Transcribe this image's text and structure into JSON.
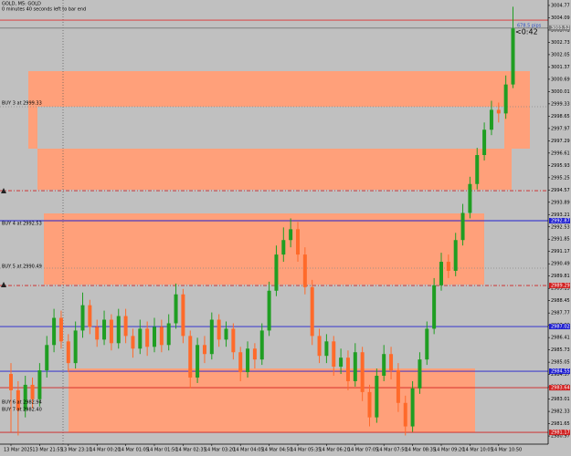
{
  "chart_data": {
    "type": "candlestick",
    "title": "GOLD, M5: GOLD",
    "subtitle": "0 minutes 40 seconds left to bar end",
    "countdown": "<0:42",
    "distance": "678.5 pips",
    "annotations": [
      "BUY 3 at 2999.33",
      "BUY 4 at 2992.53",
      "BUY 5 at 2990.49",
      "BUY 6 at 2982.94",
      "BUY 7 at 2982.40"
    ],
    "categories": [
      "13 Mar 2025",
      null,
      null,
      null,
      "13 Mar 21:55",
      null,
      null,
      null,
      "13 Mar 23:10",
      null,
      null,
      null,
      "14 Mar 00:20",
      null,
      null,
      null,
      "14 Mar 01:05",
      null,
      null,
      null,
      "14 Mar 01:50",
      null,
      null,
      null,
      "14 Mar 02:35",
      null,
      null,
      null,
      "14 Mar 03:20",
      null,
      null,
      null,
      "14 Mar 04:05",
      null,
      null,
      null,
      "14 Mar 04:50",
      null,
      null,
      null,
      "14 Mar 05:35",
      null,
      null,
      null,
      "14 Mar 06:20",
      null,
      null,
      null,
      "14 Mar 07:05",
      null,
      null,
      null,
      "14 Mar 07:50",
      null,
      null,
      null,
      "14 Mar 08:35",
      null,
      null,
      null,
      "14 Mar 09:20",
      null,
      null,
      null,
      "14 Mar 10:05",
      null,
      null,
      null,
      "14 Mar 10:50",
      null,
      null
    ],
    "open": [
      2984.4,
      2983.5,
      2982.4,
      2983.8,
      2983.0,
      2984.6,
      2986.0,
      2987.5,
      2986.2,
      2985.0,
      2986.8,
      2988.2,
      2987.0,
      2986.3,
      2987.4,
      2986.1,
      2987.6,
      2986.5,
      2985.8,
      2986.9,
      2985.9,
      2987.0,
      2986.0,
      2987.2,
      2988.8,
      2986.5,
      2984.2,
      2986.0,
      2985.5,
      2987.4,
      2986.3,
      2986.9,
      2985.6,
      2984.5,
      2985.8,
      2985.2,
      2986.8,
      2989.0,
      2991.0,
      2991.8,
      2992.4,
      2991.0,
      2989.2,
      2986.5,
      2985.4,
      2986.2,
      2984.8,
      2985.3,
      2984.0,
      2985.6,
      2983.4,
      2982.0,
      2984.3,
      2985.5,
      2984.6,
      2982.8,
      2981.5,
      2983.6,
      2985.2,
      2986.9,
      2989.3,
      2990.6,
      2990.1,
      2991.8,
      2993.3,
      2994.9,
      2996.5,
      2997.9,
      2999.0,
      2998.8,
      3000.4
    ],
    "high": [
      2985.0,
      2984.0,
      2984.3,
      2984.2,
      2985.0,
      2986.5,
      2988.0,
      2987.9,
      2986.6,
      2987.3,
      2988.9,
      2988.5,
      2987.4,
      2987.9,
      2987.7,
      2988.0,
      2988.0,
      2986.9,
      2987.4,
      2987.3,
      2987.5,
      2987.4,
      2987.7,
      2989.4,
      2989.1,
      2986.8,
      2986.4,
      2986.5,
      2987.8,
      2987.7,
      2987.3,
      2987.2,
      2985.9,
      2986.2,
      2986.1,
      2987.2,
      2989.5,
      2991.5,
      2992.5,
      2993.0,
      2992.8,
      2991.4,
      2989.6,
      2986.9,
      2986.6,
      2986.5,
      2985.8,
      2985.7,
      2986.1,
      2985.9,
      2983.8,
      2984.7,
      2986.0,
      2985.9,
      2985.0,
      2983.2,
      2984.0,
      2985.6,
      2987.3,
      2989.7,
      2991.1,
      2991.0,
      2992.2,
      2993.8,
      2995.3,
      2996.9,
      2998.3,
      2999.5,
      2999.4,
      3000.9,
      3004.7
    ],
    "low": [
      2981.2,
      2981.0,
      2982.0,
      2982.5,
      2982.6,
      2984.2,
      2985.6,
      2985.8,
      2984.5,
      2984.7,
      2986.4,
      2986.6,
      2985.9,
      2986.0,
      2985.7,
      2985.8,
      2986.1,
      2985.3,
      2985.5,
      2985.4,
      2985.6,
      2985.6,
      2985.7,
      2986.9,
      2986.1,
      2983.6,
      2983.9,
      2985.0,
      2985.2,
      2985.9,
      2985.9,
      2985.2,
      2984.0,
      2984.2,
      2984.7,
      2984.9,
      2986.5,
      2988.7,
      2990.6,
      2991.4,
      2990.6,
      2988.8,
      2986.0,
      2985.0,
      2985.0,
      2984.3,
      2984.4,
      2983.5,
      2983.7,
      2982.9,
      2981.5,
      2981.7,
      2984.0,
      2984.1,
      2982.3,
      2981.0,
      2981.2,
      2983.3,
      2984.9,
      2986.6,
      2989.0,
      2989.7,
      2989.8,
      2991.5,
      2993.0,
      2994.6,
      2996.2,
      2997.6,
      2998.3,
      2998.5,
      3000.2
    ],
    "close": [
      2983.5,
      2982.4,
      2983.8,
      2983.0,
      2984.6,
      2986.0,
      2987.5,
      2986.2,
      2985.0,
      2986.8,
      2988.2,
      2987.0,
      2986.3,
      2987.4,
      2986.1,
      2987.6,
      2986.5,
      2985.8,
      2986.9,
      2985.9,
      2987.0,
      2986.0,
      2987.2,
      2988.8,
      2986.5,
      2984.2,
      2986.0,
      2985.5,
      2987.4,
      2986.3,
      2986.9,
      2985.6,
      2984.5,
      2985.8,
      2985.2,
      2986.8,
      2989.0,
      2991.0,
      2991.8,
      2992.4,
      2991.0,
      2989.2,
      2986.5,
      2985.4,
      2986.2,
      2984.8,
      2985.3,
      2984.0,
      2985.6,
      2983.4,
      2982.0,
      2984.3,
      2985.5,
      2984.6,
      2982.8,
      2981.5,
      2983.6,
      2985.2,
      2986.9,
      2989.3,
      2990.6,
      2990.1,
      2991.8,
      2993.3,
      2994.9,
      2996.5,
      2997.9,
      2999.0,
      2998.8,
      3000.4,
      3003.5
    ],
    "up_color": "#1f9e22",
    "down_color": "#ff6a2a",
    "ylim": [
      2980.52,
      3005.07
    ],
    "yticks": [
      2980.97,
      2981.65,
      2982.33,
      2983.01,
      2983.69,
      2984.37,
      2985.05,
      2985.73,
      2986.41,
      2987.09,
      2987.77,
      2988.45,
      2989.13,
      2989.81,
      2990.49,
      2991.17,
      2991.85,
      2992.53,
      2993.21,
      2993.89,
      2994.57,
      2995.25,
      2995.93,
      2996.61,
      2997.29,
      2997.97,
      2998.65,
      2999.33,
      3000.01,
      3000.69,
      3001.37,
      3002.05,
      3002.73,
      3003.41,
      3004.09,
      3004.77
    ],
    "levels": [
      {
        "value": 3003.96,
        "color": "#e03030",
        "dash": false,
        "box": false
      },
      {
        "value": 3003.52,
        "color": "#808080",
        "dash": false,
        "box": true
      },
      {
        "value": 2994.53,
        "color": "#d02020",
        "dash": true,
        "box": false
      },
      {
        "value": 2992.87,
        "color": "#2020d0",
        "dash": false,
        "box": true
      },
      {
        "value": 2989.29,
        "color": "#d02020",
        "dash": true,
        "box": true
      },
      {
        "value": 2987.02,
        "color": "#2020d0",
        "dash": false,
        "box": true
      },
      {
        "value": 2984.55,
        "color": "#2020d0",
        "dash": false,
        "box": true
      },
      {
        "value": 2983.64,
        "color": "#d02020",
        "dash": false,
        "box": true
      },
      {
        "value": 2981.17,
        "color": "#d02020",
        "dash": false,
        "box": true
      }
    ]
  }
}
